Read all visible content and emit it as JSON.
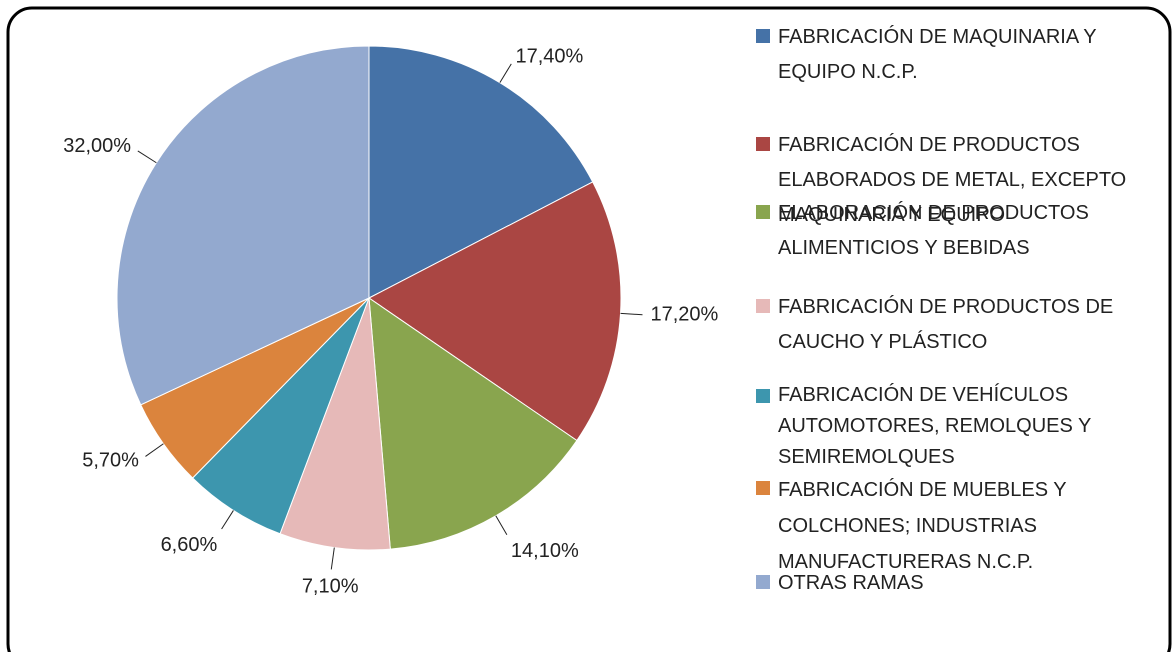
{
  "chart_data": {
    "type": "pie",
    "categories": [
      "FABRICACIÓN DE MAQUINARIA Y EQUIPO N.C.P.",
      "FABRICACIÓN DE PRODUCTOS ELABORADOS DE METAL, EXCEPTO MAQUINARIA Y EQUIPO",
      "ELABORACIÓN DE PRODUCTOS ALIMENTICIOS Y BEBIDAS",
      "FABRICACIÓN DE PRODUCTOS DE CAUCHO Y PLÁSTICO",
      "FABRICACIÓN DE VEHÍCULOS AUTOMOTORES, REMOLQUES Y SEMIREMOLQUES",
      "FABRICACIÓN DE MUEBLES Y COLCHONES; INDUSTRIAS MANUFACTURERAS N.C.P.",
      "OTRAS RAMAS"
    ],
    "values": [
      17.4,
      17.2,
      14.1,
      7.1,
      6.6,
      5.7,
      32.0
    ],
    "value_labels": [
      "17,40%",
      "17,20%",
      "14,10%",
      "7,10%",
      "6,60%",
      "5,70%",
      "32,00%"
    ],
    "colors": [
      "#4572a7",
      "#aa4643",
      "#89a54e",
      "#e6b9b8",
      "#3d96ae",
      "#db843d",
      "#93a9cf"
    ]
  }
}
